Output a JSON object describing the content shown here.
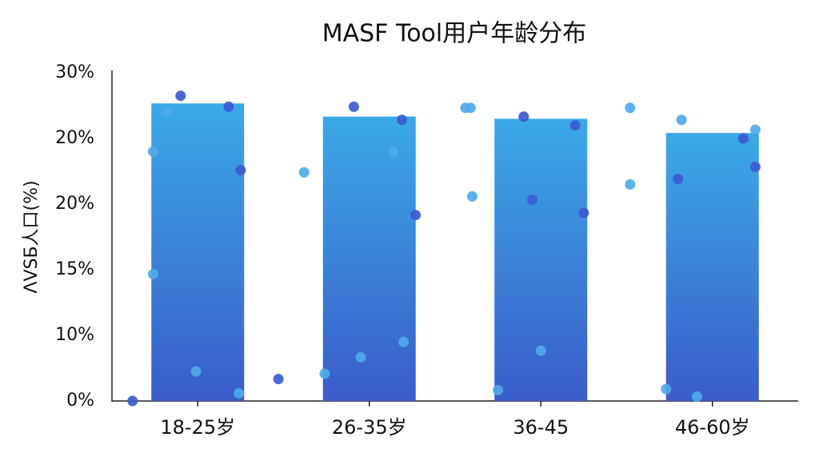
{
  "chart_data": [
    {
      "type": "bar",
      "title": "MASF Tool用户年龄分布",
      "y_label": "ΛVSБ人口(%)",
      "categories": [
        "18-25岁",
        "26-35岁",
        "36-45",
        "46-60岁"
      ],
      "values": [
        27.2,
        26.0,
        25.8,
        24.5
      ],
      "color": [
        "#3aa9e7",
        "#3a5cc9"
      ],
      "xlim": [
        -0.5,
        3.5
      ],
      "ylim": [
        0,
        30
      ],
      "ytick_labels": [
        "0%",
        "10%",
        "15%",
        "20%",
        "20%",
        "30%"
      ]
    },
    {
      "type": "scatter",
      "xlim": [
        -0.5,
        3.5
      ],
      "ylim": [
        0,
        30
      ],
      "series": [
        {
          "color": "#3b5bd1",
          "x": [
            -0.38,
            -0.1,
            0.18,
            0.25,
            0.47,
            0.91,
            1.19,
            1.27,
            1.9,
            1.95,
            2.2,
            2.25,
            2.8,
            3.18,
            3.25
          ],
          "values": [
            0,
            27.9,
            26.9,
            21.1,
            2.0,
            26.9,
            25.7,
            17.0,
            26.0,
            18.4,
            25.2,
            17.2,
            20.3,
            24.0,
            21.4
          ]
        },
        {
          "color": "#4eaaea",
          "x": [
            -0.26,
            -0.18,
            -0.26,
            -0.01,
            0.24,
            0.62,
            0.74,
            0.95,
            1.14,
            1.2,
            1.56,
            1.59,
            1.6,
            1.75,
            2.0,
            2.52,
            2.52,
            2.73,
            2.82,
            2.91,
            3.25
          ],
          "values": [
            22.8,
            26.4,
            11.6,
            2.7,
            0.7,
            20.9,
            2.5,
            4.0,
            22.8,
            5.4,
            26.8,
            26.8,
            18.7,
            1.0,
            4.6,
            26.8,
            19.8,
            1.1,
            25.7,
            0.4,
            24.8
          ]
        }
      ]
    }
  ]
}
